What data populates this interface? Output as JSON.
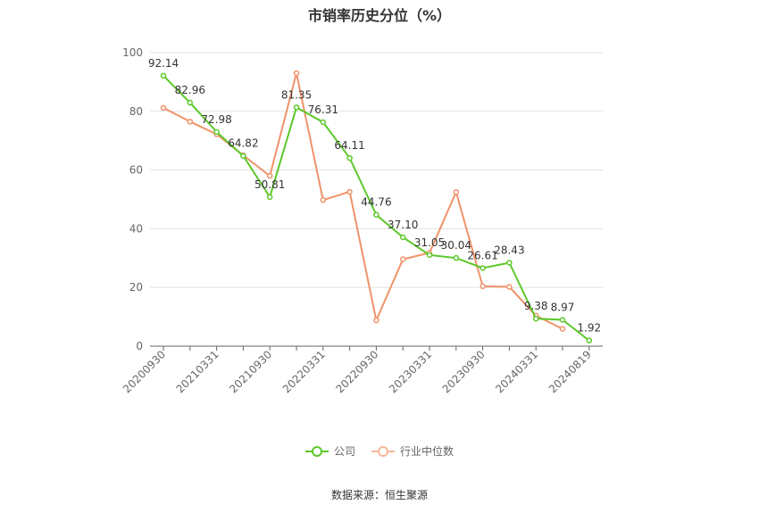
{
  "chart_data": {
    "type": "line",
    "title": "市销率历史分位（%）",
    "xlabel": "",
    "ylabel": "",
    "ylim": [
      0,
      100
    ],
    "yticks": [
      0,
      20,
      40,
      60,
      80,
      100
    ],
    "x": [
      "20200930",
      "20201231",
      "20210331",
      "20210630",
      "20210930",
      "20211231",
      "20220331",
      "20220630",
      "20220930",
      "20221231",
      "20230331",
      "20230630",
      "20230930",
      "20231231",
      "20240331",
      "20240630",
      "20240819"
    ],
    "xtick_labels": [
      "20200930",
      "20210331",
      "20210930",
      "20220331",
      "20220930",
      "20230331",
      "20230930",
      "20240331",
      "20240819"
    ],
    "series": [
      {
        "name": "公司",
        "color": "#5cc82a",
        "show_labels": true,
        "values": [
          92.14,
          82.96,
          72.98,
          64.82,
          50.81,
          81.35,
          76.31,
          64.11,
          44.76,
          37.1,
          31.05,
          30.04,
          26.61,
          28.43,
          9.38,
          8.97,
          1.92
        ],
        "labels": [
          "92.14",
          "82.96",
          "72.98",
          "64.82",
          "50.81",
          "81.35",
          "76.31",
          "64.11",
          "44.76",
          "37.10",
          "31.05",
          "30.04",
          "26.61",
          "28.43",
          "9.38",
          "8.97",
          "1.92"
        ]
      },
      {
        "name": "行业中位数",
        "color": "#f0936a",
        "show_labels": false,
        "values": [
          81.2,
          76.5,
          72.2,
          65.0,
          58.0,
          93.0,
          49.8,
          52.6,
          8.8,
          29.6,
          31.8,
          52.5,
          20.4,
          20.2,
          10.4,
          5.9,
          null
        ]
      }
    ],
    "grid": true,
    "legend": "bottom-center",
    "source": "数据来源：恒生聚源"
  }
}
